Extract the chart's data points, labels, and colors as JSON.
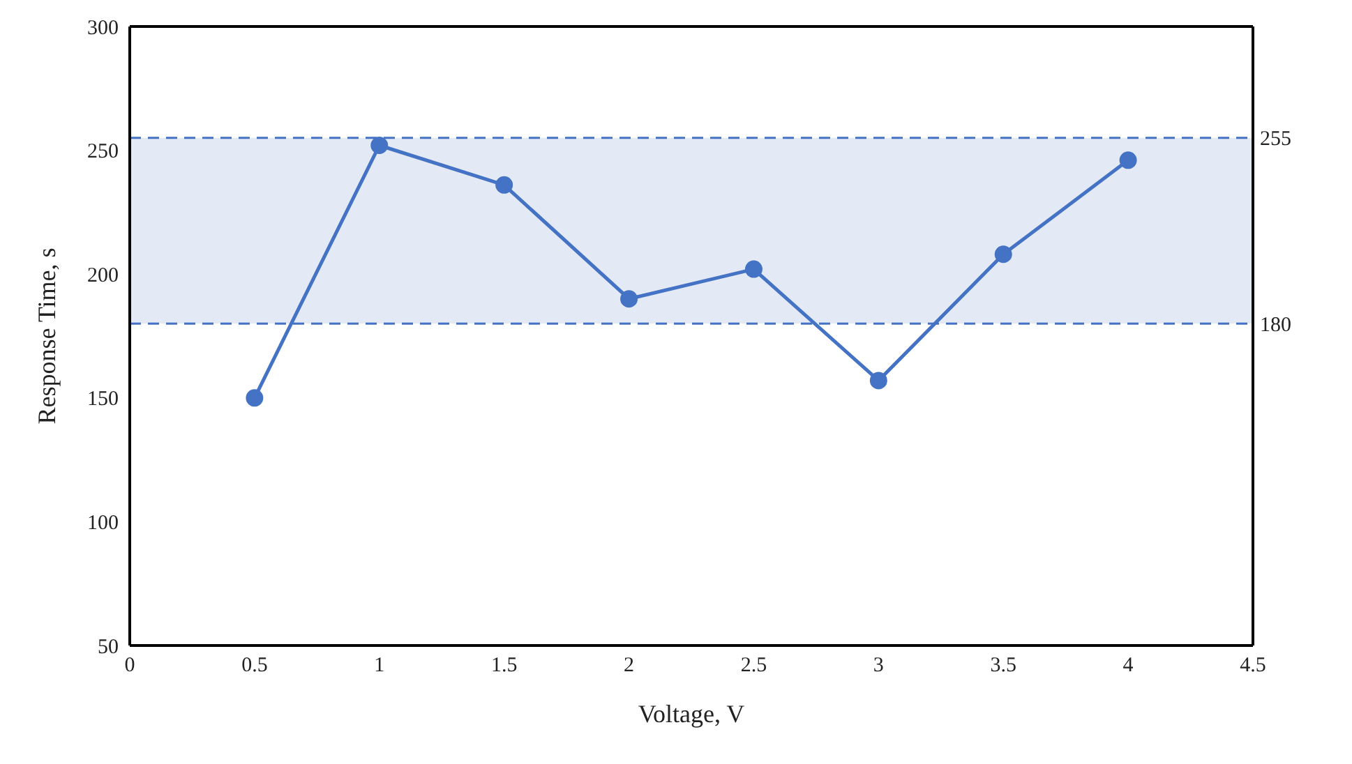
{
  "chart_data": {
    "type": "line",
    "xlabel": "Voltage, V",
    "ylabel": "Response Time, s",
    "x": [
      0.5,
      1,
      1.5,
      2,
      2.5,
      3,
      3.5,
      4
    ],
    "series": [
      {
        "color": "#4472c4",
        "values": [
          150,
          252,
          236,
          190,
          202,
          157,
          208,
          246
        ]
      }
    ],
    "xlim": [
      0,
      4.5
    ],
    "xticks": [
      0,
      0.5,
      1,
      1.5,
      2,
      2.5,
      3,
      3.5,
      4,
      4.5
    ],
    "ylim": [
      50,
      300
    ],
    "yticks": [
      50,
      100,
      150,
      200,
      250,
      300
    ],
    "bands": [
      {
        "axis": "y",
        "from": 180,
        "to": 255,
        "color": "#e3e9f5"
      }
    ],
    "ref_lines": [
      {
        "axis": "y",
        "value": 255,
        "label": "255",
        "color": "#4472c4",
        "line_style": "dashed"
      },
      {
        "axis": "y",
        "value": 180,
        "label": "180",
        "color": "#4472c4",
        "line_style": "dashed"
      }
    ],
    "grid": false,
    "legend": false,
    "marker": "circle",
    "line_style": "solid"
  }
}
